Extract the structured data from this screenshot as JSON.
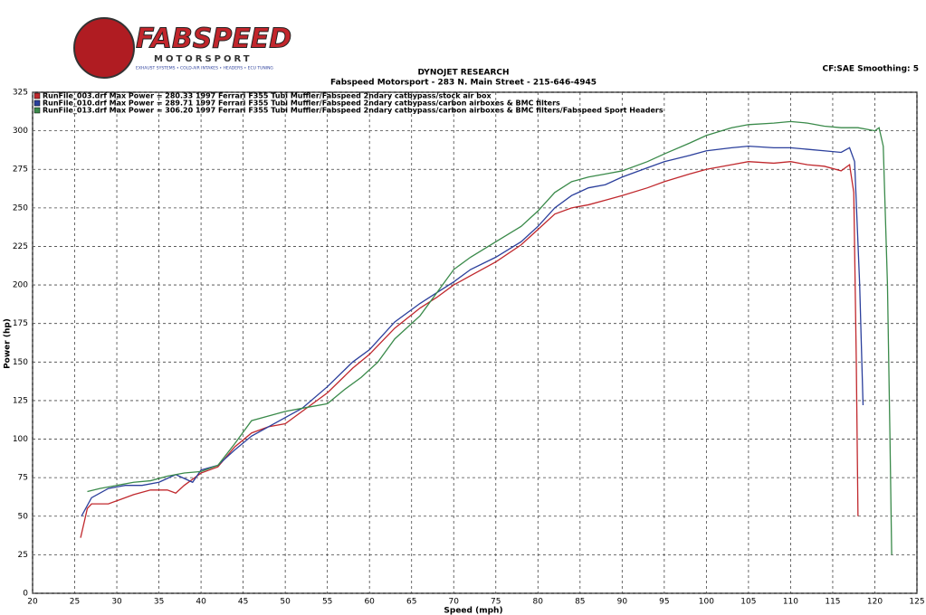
{
  "logo": {
    "name": "FABSPEED",
    "sub": "MOTORSPORT",
    "tagline": "EXHAUST SYSTEMS • COLD-AIR INTAKES • HEADERS • ECU TUNING"
  },
  "chart_data": {
    "type": "line",
    "title": "DYNOJET RESEARCH",
    "subtitle": "Fabspeed Motorsport - 283 N. Main Street - 215-646-4945",
    "annotation": "CF:SAE  Smoothing: 5",
    "x_label": "Speed (mph)",
    "y_label": "Power (hp)",
    "xlim": [
      20,
      125
    ],
    "xticks": [
      20,
      25,
      30,
      35,
      40,
      45,
      50,
      55,
      60,
      65,
      70,
      75,
      80,
      85,
      90,
      95,
      100,
      105,
      110,
      115,
      120,
      125
    ],
    "ylim": [
      0,
      325
    ],
    "yticks": [
      0,
      25,
      50,
      75,
      100,
      125,
      150,
      175,
      200,
      225,
      250,
      275,
      300,
      325
    ],
    "grid": true,
    "series": [
      {
        "name": "RunFile_003.drf Max Power = 280.33   1997 Ferrari F355 Tubi Muffler/Fabspeed 2ndary catbypass/stock air box",
        "color": "#c0282d",
        "x": [
          25.7,
          26.5,
          27,
          29,
          30,
          32,
          34,
          36,
          37,
          38,
          40,
          42,
          44,
          46,
          48,
          50,
          52,
          55,
          58,
          60,
          63,
          66,
          68,
          70,
          72,
          75,
          78,
          80,
          82,
          84,
          86,
          88,
          90,
          93,
          95,
          98,
          100,
          103,
          105,
          108,
          110,
          112,
          114,
          116,
          117,
          117.5,
          117.8,
          118
        ],
        "values": [
          36,
          55,
          58,
          58,
          60,
          64,
          67,
          67,
          65,
          70,
          78,
          82,
          95,
          104,
          108,
          110,
          118,
          130,
          146,
          155,
          172,
          185,
          192,
          200,
          206,
          215,
          226,
          236,
          246,
          250,
          252,
          255,
          258,
          263,
          267,
          272,
          275,
          278,
          280,
          279,
          280,
          278,
          277,
          274,
          278,
          260,
          150,
          50
        ]
      },
      {
        "name": "RunFile_010.drf Max Power = 289.71   1997 Ferrari F355 Tubi Muffler/Fabspeed 2ndary catbypass/carbon airboxes & BMC filters",
        "color": "#2b3f9c",
        "x": [
          25.8,
          27,
          29,
          31,
          33,
          35,
          37,
          39,
          40,
          42,
          44,
          46,
          48,
          50,
          52,
          55,
          58,
          60,
          63,
          66,
          68,
          70,
          72,
          75,
          78,
          80,
          82,
          84,
          86,
          88,
          90,
          93,
          95,
          98,
          100,
          103,
          105,
          108,
          110,
          112,
          114,
          116,
          117,
          117.6,
          118.2,
          118.6
        ],
        "values": [
          50,
          62,
          68,
          70,
          70,
          72,
          77,
          72,
          80,
          83,
          93,
          102,
          108,
          114,
          120,
          134,
          150,
          158,
          176,
          188,
          195,
          202,
          210,
          218,
          228,
          238,
          250,
          258,
          263,
          265,
          270,
          276,
          280,
          284,
          287,
          289,
          290,
          289,
          289,
          288,
          287,
          286,
          289,
          280,
          200,
          122
        ]
      },
      {
        "name": "RunFile_013.drf Max Power = 306.20   1997 Ferrari F355 Tubi Muffler/Fabspeed 2ndary catbypass/carbon airboxes & BMC filters/Fabspeed Sport Headers",
        "color": "#3a8a4a",
        "x": [
          26.5,
          28,
          30,
          32,
          34,
          36,
          38,
          40,
          42,
          44,
          46,
          48,
          50,
          52,
          55,
          57,
          59,
          61,
          63,
          66,
          68,
          70,
          72,
          75,
          78,
          80,
          82,
          84,
          86,
          88,
          90,
          93,
          95,
          98,
          100,
          103,
          105,
          108,
          110,
          112,
          114,
          116,
          118,
          120,
          120.5,
          121,
          121.5,
          121.8,
          122
        ],
        "values": [
          66,
          68,
          70,
          72,
          73,
          76,
          78,
          79,
          83,
          97,
          112,
          115,
          118,
          120,
          123,
          132,
          140,
          150,
          165,
          180,
          195,
          210,
          218,
          228,
          238,
          248,
          260,
          267,
          270,
          272,
          274,
          280,
          285,
          292,
          297,
          302,
          304,
          305,
          306,
          305,
          303,
          302,
          302,
          300,
          302,
          290,
          200,
          100,
          25
        ]
      }
    ]
  }
}
